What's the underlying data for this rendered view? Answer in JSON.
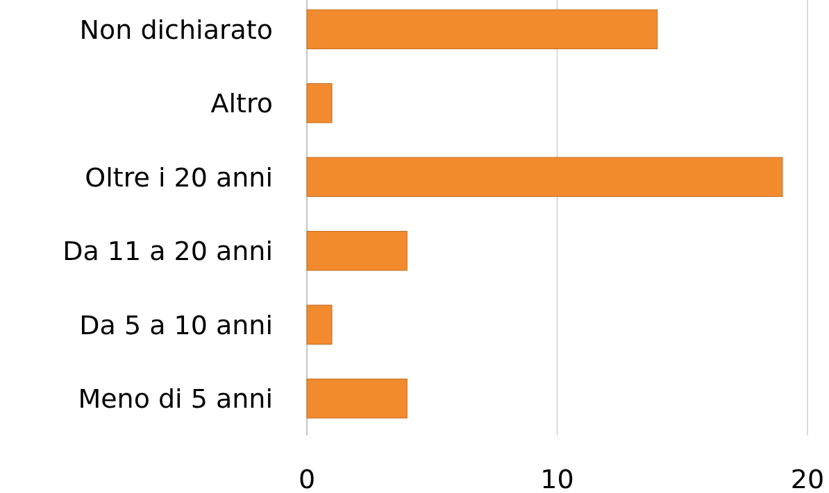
{
  "chart_data": {
    "type": "bar",
    "orientation": "horizontal",
    "categories": [
      "Non dichiarato",
      "Altro",
      "Oltre i 20 anni",
      "Da 11 a 20 anni",
      "Da 5 a 10 anni",
      "Meno di 5 anni"
    ],
    "values": [
      14,
      1,
      19,
      4,
      1,
      4
    ],
    "color": "#f28a2e",
    "xlim": [
      0,
      20
    ],
    "xticks": [
      0,
      10,
      20
    ],
    "grid": "x"
  }
}
